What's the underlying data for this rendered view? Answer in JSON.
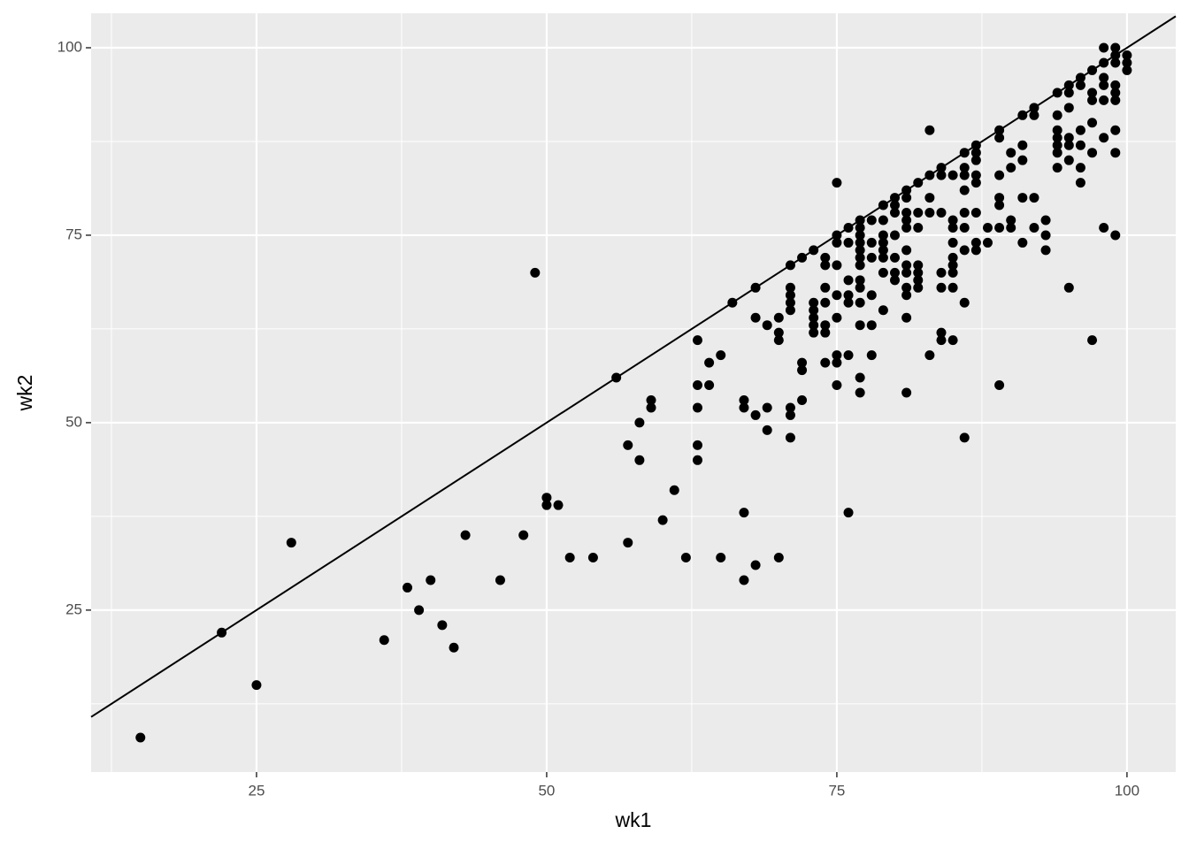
{
  "chart_data": {
    "type": "scatter",
    "x_label": "wk1",
    "y_label": "wk2",
    "xlim": [
      10.75,
      104.2
    ],
    "ylim": [
      3.4,
      104.6
    ],
    "xticks": [
      25,
      50,
      75,
      100
    ],
    "yticks": [
      25,
      50,
      75,
      100
    ],
    "minor_xticks": [
      12.5,
      37.5,
      62.5,
      87.5
    ],
    "minor_yticks": [
      12.5,
      37.5,
      62.5,
      87.5
    ],
    "grid": true,
    "color": "#000000",
    "line_color": "#000000",
    "reference_line": {
      "slope": 1,
      "intercept": 0
    },
    "x": [
      15,
      22,
      25,
      28,
      36,
      38,
      39,
      40,
      41,
      42,
      43,
      46,
      48,
      49,
      50,
      50,
      51,
      52,
      54,
      56,
      57,
      57,
      58,
      58,
      59,
      59,
      60,
      61,
      62,
      63,
      63,
      63,
      63,
      63,
      64,
      64,
      65,
      65,
      66,
      67,
      67,
      67,
      67,
      68,
      68,
      68,
      68,
      69,
      69,
      69,
      70,
      70,
      70,
      70,
      71,
      71,
      71,
      71,
      71,
      71,
      71,
      71,
      72,
      72,
      72,
      72,
      73,
      73,
      73,
      73,
      73,
      73,
      74,
      74,
      74,
      74,
      74,
      74,
      74,
      75,
      75,
      75,
      75,
      75,
      75,
      75,
      75,
      75,
      76,
      76,
      76,
      76,
      76,
      76,
      76,
      77,
      77,
      77,
      77,
      77,
      77,
      77,
      77,
      77,
      77,
      77,
      77,
      77,
      78,
      78,
      78,
      78,
      78,
      78,
      79,
      79,
      79,
      79,
      79,
      79,
      79,
      79,
      80,
      80,
      80,
      80,
      80,
      80,
      80,
      81,
      81,
      81,
      81,
      81,
      81,
      81,
      81,
      81,
      81,
      81,
      81,
      82,
      82,
      82,
      82,
      82,
      82,
      82,
      83,
      83,
      83,
      83,
      83,
      84,
      84,
      84,
      84,
      84,
      84,
      84,
      85,
      85,
      85,
      85,
      85,
      85,
      85,
      85,
      85,
      86,
      86,
      86,
      86,
      86,
      86,
      86,
      86,
      86,
      87,
      87,
      87,
      87,
      87,
      87,
      87,
      87,
      88,
      88,
      89,
      89,
      89,
      89,
      89,
      89,
      89,
      90,
      90,
      90,
      90,
      91,
      91,
      91,
      91,
      91,
      92,
      92,
      92,
      92,
      93,
      93,
      93,
      94,
      94,
      94,
      94,
      94,
      94,
      94,
      95,
      95,
      95,
      95,
      95,
      95,
      95,
      96,
      96,
      96,
      96,
      96,
      96,
      97,
      97,
      97,
      97,
      97,
      97,
      98,
      98,
      98,
      98,
      98,
      98,
      98,
      99,
      99,
      99,
      99,
      99,
      99,
      99,
      99,
      99,
      100,
      100,
      100
    ],
    "values": [
      8,
      22,
      15,
      34,
      21,
      28,
      25,
      29,
      23,
      20,
      35,
      29,
      35,
      70,
      40,
      39,
      39,
      32,
      32,
      56,
      47,
      34,
      50,
      45,
      53,
      52,
      37,
      41,
      32,
      61,
      55,
      52,
      47,
      45,
      58,
      55,
      59,
      32,
      66,
      53,
      52,
      38,
      29,
      68,
      64,
      51,
      31,
      63,
      52,
      49,
      64,
      62,
      61,
      32,
      71,
      68,
      67,
      66,
      65,
      52,
      51,
      48,
      72,
      58,
      57,
      53,
      73,
      66,
      65,
      64,
      63,
      62,
      72,
      71,
      68,
      66,
      63,
      62,
      58,
      82,
      75,
      74,
      71,
      67,
      64,
      59,
      58,
      55,
      76,
      74,
      69,
      67,
      66,
      59,
      38,
      77,
      76,
      75,
      74,
      73,
      72,
      71,
      69,
      68,
      66,
      63,
      56,
      54,
      77,
      74,
      72,
      67,
      63,
      59,
      79,
      77,
      75,
      74,
      73,
      72,
      70,
      65,
      80,
      79,
      78,
      75,
      72,
      70,
      69,
      81,
      80,
      78,
      77,
      76,
      73,
      71,
      70,
      68,
      67,
      64,
      54,
      82,
      78,
      76,
      71,
      70,
      69,
      68,
      89,
      83,
      80,
      78,
      59,
      84,
      83,
      78,
      70,
      68,
      62,
      61,
      83,
      77,
      76,
      74,
      72,
      71,
      70,
      68,
      61,
      86,
      84,
      83,
      81,
      78,
      76,
      73,
      66,
      48,
      87,
      86,
      85,
      83,
      82,
      78,
      74,
      73,
      76,
      74,
      89,
      88,
      83,
      80,
      79,
      76,
      55,
      86,
      84,
      77,
      76,
      91,
      87,
      85,
      80,
      74,
      92,
      91,
      80,
      76,
      77,
      75,
      73,
      94,
      91,
      89,
      88,
      87,
      86,
      84,
      95,
      94,
      92,
      88,
      87,
      85,
      68,
      96,
      95,
      89,
      87,
      84,
      82,
      97,
      94,
      93,
      90,
      86,
      61,
      100,
      98,
      96,
      95,
      93,
      88,
      76,
      100,
      99,
      98,
      95,
      94,
      93,
      89,
      86,
      75,
      99,
      98,
      97
    ]
  }
}
